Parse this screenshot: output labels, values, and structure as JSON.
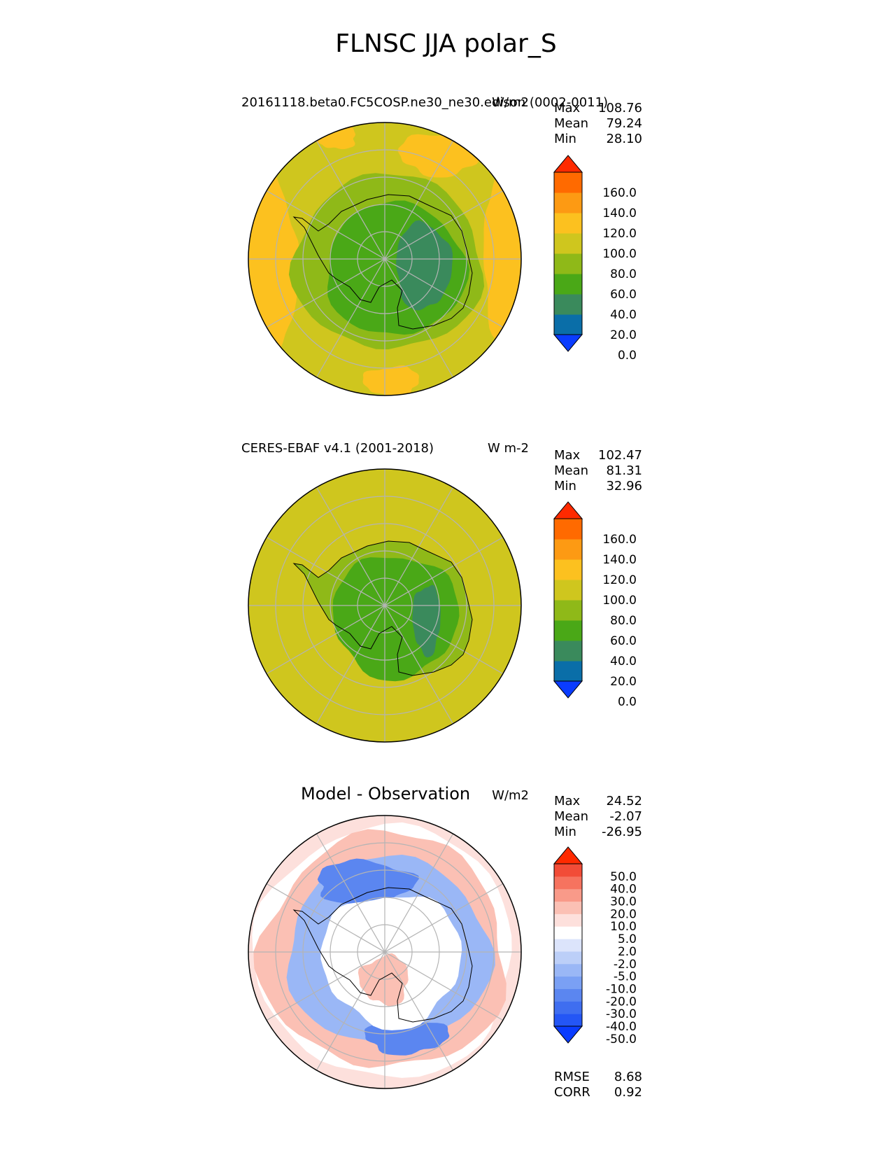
{
  "figure": {
    "title": "FLNSC JJA polar_S"
  },
  "panels": [
    {
      "id": "test",
      "left_title": "20161118.beta0.FC5COSP.ne30_ne30.edison (0002-0011)",
      "units": "W/m2",
      "stats": [
        {
          "label": "Max",
          "value": "108.76"
        },
        {
          "label": "Mean",
          "value": "79.24"
        },
        {
          "label": "Min",
          "value": "28.10"
        }
      ],
      "colorbar": {
        "ticks": [
          "160.0",
          "140.0",
          "120.0",
          "100.0",
          "80.0",
          "60.0",
          "40.0",
          "20.0",
          "0.0"
        ],
        "colors": [
          "#0a3cff",
          "#0a6ea8",
          "#3a8a5c",
          "#4aa817",
          "#8fb918",
          "#cfc61e",
          "#fcc11f",
          "#fd9a13",
          "#ff6a00",
          "#ff2a00"
        ]
      },
      "field_colors": {
        "ocean": "#cfc61e",
        "ring": "#fcc11f",
        "shelf": "#8fb918",
        "interior": "#4aa817",
        "dome": "#3a8a5c"
      }
    },
    {
      "id": "ref",
      "left_title": "CERES-EBAF v4.1 (2001-2018)",
      "units": "W m-2",
      "stats": [
        {
          "label": "Max",
          "value": "102.47"
        },
        {
          "label": "Mean",
          "value": "81.31"
        },
        {
          "label": "Min",
          "value": "32.96"
        }
      ],
      "colorbar": {
        "ticks": [
          "160.0",
          "140.0",
          "120.0",
          "100.0",
          "80.0",
          "60.0",
          "40.0",
          "20.0",
          "0.0"
        ],
        "colors": [
          "#0a3cff",
          "#0a6ea8",
          "#3a8a5c",
          "#4aa817",
          "#8fb918",
          "#cfc61e",
          "#fcc11f",
          "#fd9a13",
          "#ff6a00",
          "#ff2a00"
        ]
      },
      "field_colors": {
        "ocean": "#cfc61e",
        "shelf": "#8fb918",
        "interior": "#4aa817",
        "dome": "#3a8a5c"
      }
    },
    {
      "id": "diff",
      "center_title": "Model - Observation",
      "units": "W/m2",
      "stats": [
        {
          "label": "Max",
          "value": "24.52"
        },
        {
          "label": "Mean",
          "value": "-2.07"
        },
        {
          "label": "Min",
          "value": "-26.95"
        }
      ],
      "metrics": [
        {
          "label": "RMSE",
          "value": "8.68"
        },
        {
          "label": "CORR",
          "value": "0.92"
        }
      ],
      "colorbar": {
        "ticks": [
          "50.0",
          "40.0",
          "30.0",
          "20.0",
          "10.0",
          "5.0",
          "2.0",
          "-2.0",
          "-5.0",
          "-10.0",
          "-20.0",
          "-30.0",
          "-40.0",
          "-50.0"
        ],
        "colors": [
          "#0a3cff",
          "#2456f5",
          "#3f6ef0",
          "#5b86f0",
          "#7aa0f4",
          "#9ab7f6",
          "#bccff8",
          "#dce4fb",
          "#ffffff",
          "#fde0dc",
          "#fbc0b4",
          "#f99a89",
          "#f6735f",
          "#f24c37",
          "#ff2a00"
        ]
      },
      "field_colors": {
        "outer": "#fde0dc",
        "pink": "#fbc0b4",
        "blue": "#9ab7f6",
        "dark_blue": "#5b86f0",
        "white": "#ffffff"
      }
    }
  ],
  "chart_data": [
    {
      "type": "heatmap",
      "projection": "south polar stereographic",
      "title": "20161118.beta0.FC5COSP.ne30_ne30.edison (0002-0011)",
      "units": "W/m2",
      "stats": {
        "max": 108.76,
        "mean": 79.24,
        "min": 28.1
      },
      "colorbar_levels": [
        0,
        20,
        40,
        60,
        80,
        100,
        120,
        140,
        160
      ],
      "colorbar_extend": "both"
    },
    {
      "type": "heatmap",
      "projection": "south polar stereographic",
      "title": "CERES-EBAF v4.1 (2001-2018)",
      "units": "W m-2",
      "stats": {
        "max": 102.47,
        "mean": 81.31,
        "min": 32.96
      },
      "colorbar_levels": [
        0,
        20,
        40,
        60,
        80,
        100,
        120,
        140,
        160
      ],
      "colorbar_extend": "both"
    },
    {
      "type": "heatmap",
      "projection": "south polar stereographic",
      "title": "Model - Observation",
      "units": "W/m2",
      "stats": {
        "max": 24.52,
        "mean": -2.07,
        "min": -26.95,
        "rmse": 8.68,
        "corr": 0.92
      },
      "colorbar_levels": [
        -50,
        -40,
        -30,
        -20,
        -10,
        -5,
        -2,
        2,
        5,
        10,
        20,
        30,
        40,
        50
      ],
      "colorbar_extend": "both"
    }
  ]
}
